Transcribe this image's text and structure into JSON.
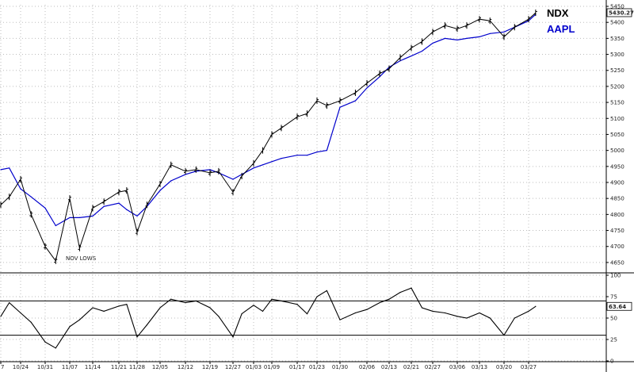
{
  "chart_data": [
    {
      "type": "line",
      "panel": "price",
      "legend_placement": "top-right",
      "grid": true,
      "y_scale": "linear",
      "ylim": [
        4625,
        5455
      ],
      "yticks": [
        "4650",
        "4700",
        "4750",
        "4800",
        "4850",
        "4900",
        "4950",
        "5000",
        "5050",
        "5100",
        "5150",
        "5200",
        "5250",
        "5300",
        "5350",
        "5400",
        "5450"
      ],
      "x_tick_labels": [
        "7",
        "10/24",
        "10/31",
        "11/07",
        "11/14",
        "11/21",
        "11/28",
        "12/05",
        "12/12",
        "12/19",
        "12/27",
        "01/03",
        "01/09",
        "01/17",
        "01/23",
        "01/30",
        "02/06",
        "02/13",
        "02/21",
        "02/27",
        "03/06",
        "03/13",
        "03/20",
        "03/27"
      ],
      "last_value_label": "5430.27",
      "annotation": "NOV LOWS",
      "series": [
        {
          "name": "NDX",
          "color": "#000000",
          "style": "ohlc-bars",
          "x": [
            "10/17",
            "10/20",
            "10/24",
            "10/27",
            "10/31",
            "11/03",
            "11/07",
            "11/10",
            "11/14",
            "11/17",
            "11/21",
            "11/24",
            "11/28",
            "12/01",
            "12/05",
            "12/08",
            "12/12",
            "12/15",
            "12/19",
            "12/22",
            "12/27",
            "12/30",
            "01/03",
            "01/06",
            "01/09",
            "01/12",
            "01/17",
            "01/20",
            "01/23",
            "01/26",
            "01/30",
            "02/03",
            "02/06",
            "02/10",
            "02/13",
            "02/17",
            "02/21",
            "02/24",
            "02/27",
            "03/02",
            "03/06",
            "03/09",
            "03/13",
            "03/16",
            "03/20",
            "03/23",
            "03/27",
            "03/29"
          ],
          "y": [
            4830,
            4855,
            4910,
            4800,
            4700,
            4655,
            4850,
            4695,
            4820,
            4840,
            4870,
            4875,
            4745,
            4830,
            4895,
            4955,
            4935,
            4940,
            4930,
            4935,
            4870,
            4920,
            4960,
            5000,
            5050,
            5070,
            5105,
            5115,
            5155,
            5140,
            5155,
            5180,
            5210,
            5240,
            5255,
            5290,
            5320,
            5340,
            5370,
            5390,
            5380,
            5390,
            5410,
            5405,
            5355,
            5385,
            5410,
            5430
          ]
        },
        {
          "name": "AAPL",
          "color": "#0000cc",
          "style": "line",
          "x": [
            "10/17",
            "10/20",
            "10/24",
            "10/27",
            "10/31",
            "11/03",
            "11/07",
            "11/10",
            "11/14",
            "11/17",
            "11/21",
            "11/24",
            "11/28",
            "12/01",
            "12/05",
            "12/08",
            "12/12",
            "12/15",
            "12/19",
            "12/22",
            "12/27",
            "12/30",
            "01/03",
            "01/06",
            "01/09",
            "01/12",
            "01/17",
            "01/20",
            "01/23",
            "01/26",
            "01/30",
            "02/03",
            "02/06",
            "02/10",
            "02/13",
            "02/17",
            "02/21",
            "02/24",
            "02/27",
            "03/02",
            "03/06",
            "03/09",
            "03/13",
            "03/16",
            "03/20",
            "03/23",
            "03/27",
            "03/29"
          ],
          "y": [
            4940,
            4945,
            4880,
            4855,
            4820,
            4765,
            4790,
            4790,
            4795,
            4825,
            4835,
            4815,
            4795,
            4825,
            4875,
            4905,
            4925,
            4935,
            4940,
            4930,
            4910,
            4925,
            4945,
            4955,
            4965,
            4975,
            4985,
            4985,
            4995,
            5000,
            5135,
            5155,
            5195,
            5230,
            5260,
            5280,
            5295,
            5310,
            5335,
            5350,
            5345,
            5350,
            5355,
            5365,
            5370,
            5385,
            5405,
            5425
          ]
        }
      ]
    },
    {
      "type": "line",
      "panel": "oscillator",
      "grid": true,
      "ylim": [
        0,
        100
      ],
      "yticks": [
        "0",
        "25",
        "50",
        "75",
        "100"
      ],
      "reference_lines": [
        30,
        70
      ],
      "last_value_label": "63.64",
      "series": [
        {
          "name": "",
          "color": "#000000",
          "x": [
            "10/17",
            "10/20",
            "10/24",
            "10/27",
            "10/31",
            "11/03",
            "11/07",
            "11/10",
            "11/14",
            "11/17",
            "11/21",
            "11/24",
            "11/28",
            "12/01",
            "12/05",
            "12/08",
            "12/12",
            "12/15",
            "12/19",
            "12/22",
            "12/27",
            "12/30",
            "01/03",
            "01/06",
            "01/09",
            "01/12",
            "01/17",
            "01/20",
            "01/23",
            "01/26",
            "01/30",
            "02/03",
            "02/06",
            "02/10",
            "02/13",
            "02/17",
            "02/21",
            "02/24",
            "02/27",
            "03/02",
            "03/06",
            "03/09",
            "03/13",
            "03/16",
            "03/20",
            "03/23",
            "03/27",
            "03/29"
          ],
          "y": [
            52,
            68,
            56,
            45,
            22,
            15,
            40,
            48,
            62,
            58,
            64,
            66,
            28,
            42,
            62,
            72,
            68,
            70,
            62,
            52,
            28,
            55,
            65,
            58,
            72,
            70,
            66,
            55,
            75,
            82,
            48,
            56,
            60,
            68,
            72,
            80,
            85,
            62,
            58,
            56,
            52,
            50,
            56,
            50,
            30,
            50,
            58,
            63.64
          ]
        }
      ]
    }
  ]
}
